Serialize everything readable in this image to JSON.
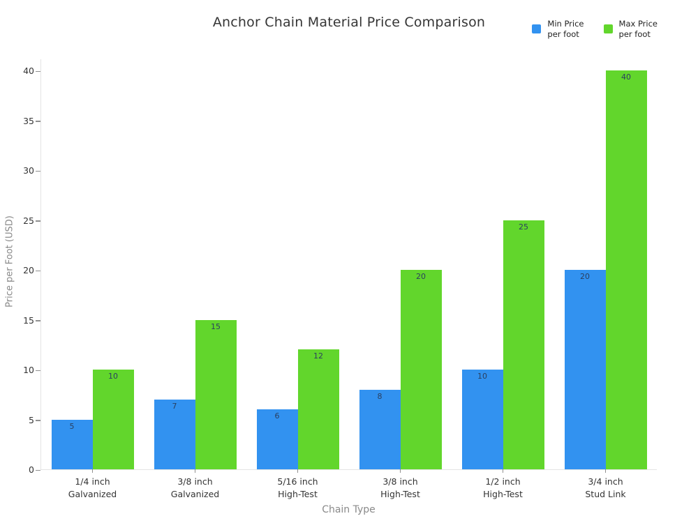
{
  "title": "Anchor Chain Material Price Comparison",
  "colors": {
    "min_series": "#3292f0",
    "max_series": "#62d62c",
    "axis_line": "#e3e3e3",
    "tick_mark": "#8f8f8f",
    "tick_label": "#333333",
    "axis_title": "#8a8a8a",
    "value_label": "#2a3f5f",
    "background": "#ffffff"
  },
  "legend": {
    "position": "top-right",
    "items": [
      {
        "label": "Min Price\nper foot",
        "color": "#3292f0"
      },
      {
        "label": "Max Price\nper foot",
        "color": "#62d62c"
      }
    ]
  },
  "chart_data": {
    "type": "bar",
    "title": "Anchor Chain Material Price Comparison",
    "xlabel": "Chain Type",
    "ylabel": "Price per Foot (USD)",
    "categories": [
      "1/4 inch\nGalvanized",
      "3/8 inch\nGalvanized",
      "5/16 inch\nHigh-Test",
      "3/8 inch\nHigh-Test",
      "1/2 inch\nHigh-Test",
      "3/4 inch\nStud Link"
    ],
    "series": [
      {
        "name": "Min Price per foot",
        "color": "#3292f0",
        "values": [
          5,
          7,
          6,
          8,
          10,
          20
        ]
      },
      {
        "name": "Max Price per foot",
        "color": "#62d62c",
        "values": [
          10,
          15,
          12,
          20,
          25,
          40
        ]
      }
    ],
    "ylim": [
      0,
      41.2
    ],
    "yticks": [
      0,
      5,
      10,
      15,
      20,
      25,
      30,
      35,
      40
    ],
    "grid": false,
    "bar_value_labels": "inside-top",
    "legend_position": "top-right"
  }
}
